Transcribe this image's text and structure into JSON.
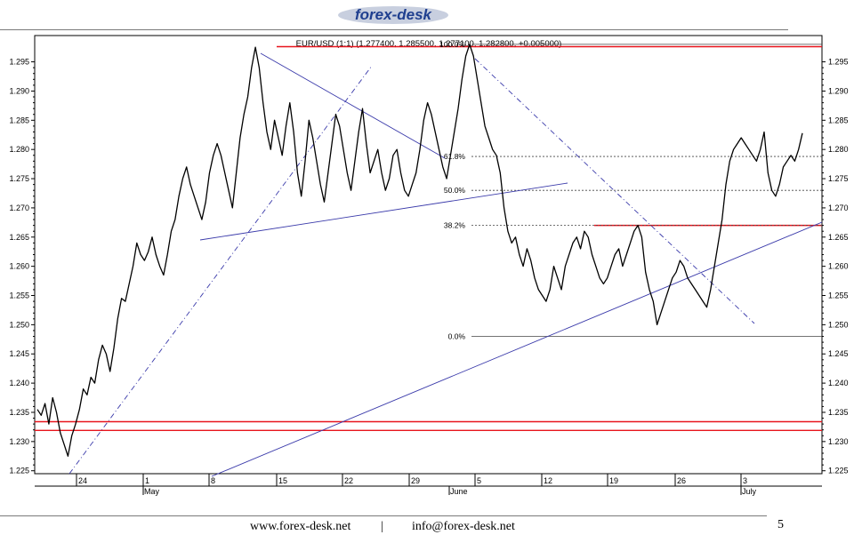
{
  "brand": {
    "name": "forex-desk",
    "logo_colors": [
      "#1f3f8f",
      "#c8cfdf"
    ]
  },
  "footer": {
    "website": "www.forex-desk.net",
    "separator": "|",
    "email": "info@forex-desk.net",
    "page_number": "5"
  },
  "chart_data": {
    "type": "line",
    "title": "EUR/USD (1:1) (1.277400, 1.285500, 1.277100, 1.282800, +0.005000)",
    "ylim": [
      1.2245,
      1.2995
    ],
    "y_ticks": [
      "1.295",
      "1.290",
      "1.285",
      "1.280",
      "1.275",
      "1.270",
      "1.265",
      "1.260",
      "1.255",
      "1.250",
      "1.245",
      "1.240",
      "1.235",
      "1.230",
      "1.225"
    ],
    "x_day_ticks": [
      "24",
      "1",
      "8",
      "15",
      "22",
      "29",
      "5",
      "12",
      "19",
      "26",
      "3"
    ],
    "x_month_labels": [
      "May",
      "June",
      "July"
    ],
    "grid": false,
    "colors": {
      "price": "#000000",
      "trendline": "#3a3aaa",
      "level": "#e8141c",
      "fib": "#444444"
    },
    "series": [
      {
        "values": [
          1.2355,
          1.2345,
          1.2365,
          1.233,
          1.2375,
          1.235,
          1.2315,
          1.2295,
          1.2275,
          1.231,
          1.233,
          1.2355,
          1.239,
          1.238,
          1.241,
          1.24,
          1.244,
          1.2465,
          1.245,
          1.242,
          1.246,
          1.251,
          1.2545,
          1.254,
          1.257,
          1.26,
          1.264,
          1.262,
          1.261,
          1.2625,
          1.265,
          1.262,
          1.26,
          1.2585,
          1.262,
          1.266,
          1.268,
          1.272,
          1.275,
          1.277,
          1.274,
          1.272,
          1.27,
          1.268,
          1.271,
          1.276,
          1.279,
          1.281,
          1.279,
          1.276,
          1.273,
          1.27,
          1.276,
          1.282,
          1.286,
          1.289,
          1.294,
          1.2975,
          1.294,
          1.288,
          1.283,
          1.28,
          1.285,
          1.282,
          1.279,
          1.284,
          1.288,
          1.283,
          1.276,
          1.272,
          1.278,
          1.285,
          1.282,
          1.278,
          1.274,
          1.271,
          1.276,
          1.281,
          1.286,
          1.284,
          1.28,
          1.276,
          1.273,
          1.278,
          1.283,
          1.287,
          1.281,
          1.276,
          1.278,
          1.28,
          1.276,
          1.273,
          1.275,
          1.279,
          1.28,
          1.276,
          1.273,
          1.272,
          1.274,
          1.276,
          1.28,
          1.285,
          1.288,
          1.286,
          1.283,
          1.28,
          1.277,
          1.275,
          1.279,
          1.283,
          1.287,
          1.292,
          1.296,
          1.298,
          1.296,
          1.292,
          1.288,
          1.284,
          1.282,
          1.28,
          1.279,
          1.276,
          1.27,
          1.266,
          1.264,
          1.265,
          1.262,
          1.26,
          1.263,
          1.261,
          1.258,
          1.256,
          1.255,
          1.254,
          1.256,
          1.26,
          1.258,
          1.256,
          1.26,
          1.262,
          1.264,
          1.265,
          1.263,
          1.266,
          1.265,
          1.262,
          1.26,
          1.258,
          1.257,
          1.258,
          1.26,
          1.262,
          1.263,
          1.26,
          1.262,
          1.264,
          1.266,
          1.267,
          1.265,
          1.259,
          1.256,
          1.254,
          1.25,
          1.252,
          1.254,
          1.256,
          1.258,
          1.259,
          1.261,
          1.26,
          1.258,
          1.257,
          1.256,
          1.255,
          1.254,
          1.253,
          1.256,
          1.26,
          1.264,
          1.268,
          1.274,
          1.278,
          1.28,
          1.281,
          1.282,
          1.281,
          1.28,
          1.279,
          1.278,
          1.28,
          1.283,
          1.276,
          1.273,
          1.272,
          1.274,
          1.277,
          1.278,
          1.279,
          1.278,
          1.28,
          1.2828
        ]
      }
    ],
    "resistance_lines": [
      1.2976,
      1.267,
      1.2334,
      1.2319
    ],
    "fibonacci": [
      {
        "label": "100.0%",
        "value": 1.298
      },
      {
        "label": "61.8%",
        "value": 1.2788
      },
      {
        "label": "50.0%",
        "value": 1.273
      },
      {
        "label": "38.2%",
        "value": 1.267
      },
      {
        "label": "0.0%",
        "value": 1.248
      }
    ]
  }
}
